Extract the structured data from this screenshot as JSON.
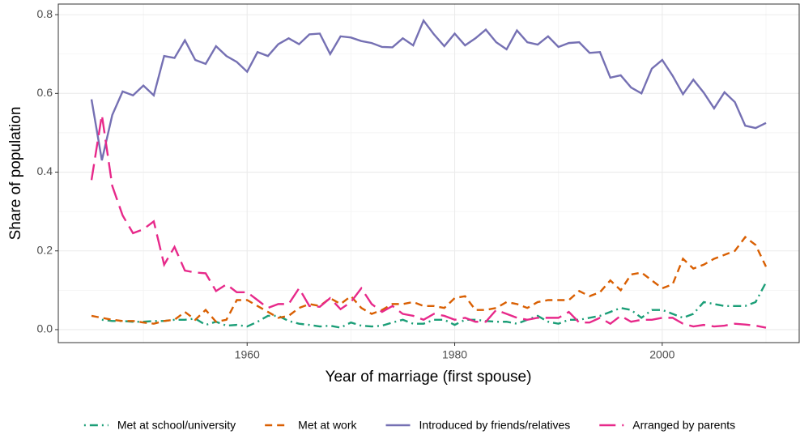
{
  "chart_data": {
    "type": "line",
    "x_label": "Year of marriage (first spouse)",
    "y_label": "Share of population",
    "x": [
      1945,
      1946,
      1947,
      1948,
      1949,
      1950,
      1951,
      1952,
      1953,
      1954,
      1955,
      1956,
      1957,
      1958,
      1959,
      1960,
      1961,
      1962,
      1963,
      1964,
      1965,
      1966,
      1967,
      1968,
      1969,
      1970,
      1971,
      1972,
      1973,
      1974,
      1975,
      1976,
      1977,
      1978,
      1979,
      1980,
      1981,
      1982,
      1983,
      1984,
      1985,
      1986,
      1987,
      1988,
      1989,
      1990,
      1991,
      1992,
      1993,
      1994,
      1995,
      1996,
      1997,
      1998,
      1999,
      2000,
      2001,
      2002,
      2003,
      2004,
      2005,
      2006,
      2007,
      2008,
      2009,
      2010
    ],
    "series": [
      {
        "name": "Met at school/university",
        "color": "#1b9e77",
        "linetype": "dotdash",
        "values": [
          null,
          0.025,
          0.022,
          0.022,
          0.02,
          0.02,
          0.022,
          0.022,
          0.025,
          0.025,
          0.028,
          0.012,
          0.02,
          0.01,
          0.012,
          0.008,
          0.02,
          0.035,
          0.035,
          0.022,
          0.015,
          0.012,
          0.008,
          0.01,
          0.005,
          0.018,
          0.01,
          0.008,
          0.01,
          0.018,
          0.025,
          0.015,
          0.015,
          0.025,
          0.025,
          0.012,
          0.025,
          0.025,
          0.022,
          0.02,
          0.02,
          0.015,
          0.025,
          0.035,
          0.02,
          0.015,
          0.025,
          0.025,
          0.03,
          0.035,
          0.045,
          0.055,
          0.05,
          0.03,
          0.05,
          0.05,
          0.04,
          0.03,
          0.04,
          0.07,
          0.065,
          0.06,
          0.06,
          0.06,
          0.07,
          0.12
        ]
      },
      {
        "name": "Met at work",
        "color": "#d95f02",
        "linetype": "dashed",
        "values": [
          0.035,
          0.03,
          0.025,
          0.022,
          0.022,
          0.018,
          0.015,
          0.022,
          0.025,
          0.045,
          0.025,
          0.05,
          0.02,
          0.025,
          0.075,
          0.075,
          0.06,
          0.045,
          0.03,
          0.035,
          0.055,
          0.065,
          0.06,
          0.08,
          0.065,
          0.085,
          0.055,
          0.04,
          0.05,
          0.065,
          0.065,
          0.07,
          0.06,
          0.06,
          0.055,
          0.08,
          0.085,
          0.05,
          0.05,
          0.055,
          0.07,
          0.065,
          0.055,
          0.07,
          0.075,
          0.075,
          0.075,
          0.098,
          0.085,
          0.095,
          0.125,
          0.1,
          0.14,
          0.145,
          0.125,
          0.105,
          0.115,
          0.18,
          0.155,
          0.165,
          0.18,
          0.19,
          0.2,
          0.235,
          0.215,
          0.16
        ]
      },
      {
        "name": "Introduced by friends/relatives",
        "color": "#7570b3",
        "linetype": "solid",
        "values": [
          0.585,
          0.43,
          0.545,
          0.605,
          0.595,
          0.62,
          0.595,
          0.695,
          0.69,
          0.735,
          0.685,
          0.675,
          0.72,
          0.695,
          0.68,
          0.655,
          0.705,
          0.695,
          0.725,
          0.74,
          0.725,
          0.75,
          0.752,
          0.7,
          0.745,
          0.742,
          0.733,
          0.728,
          0.718,
          0.717,
          0.74,
          0.722,
          0.785,
          0.75,
          0.72,
          0.752,
          0.722,
          0.74,
          0.762,
          0.73,
          0.712,
          0.76,
          0.73,
          0.724,
          0.745,
          0.718,
          0.728,
          0.73,
          0.703,
          0.705,
          0.64,
          0.646,
          0.615,
          0.6,
          0.663,
          0.685,
          0.645,
          0.598,
          0.635,
          0.602,
          0.562,
          0.603,
          0.578,
          0.518,
          0.512,
          0.525
        ]
      },
      {
        "name": "Arranged by parents",
        "color": "#e7298a",
        "linetype": "longdash",
        "values": [
          0.38,
          0.545,
          0.365,
          0.29,
          0.245,
          0.255,
          0.275,
          0.165,
          0.21,
          0.15,
          0.145,
          0.143,
          0.098,
          0.115,
          0.095,
          0.095,
          0.075,
          0.055,
          0.065,
          0.065,
          0.105,
          0.06,
          0.058,
          0.08,
          0.052,
          0.07,
          0.105,
          0.065,
          0.045,
          0.06,
          0.04,
          0.035,
          0.025,
          0.04,
          0.035,
          0.025,
          0.03,
          0.02,
          0.02,
          0.05,
          0.04,
          0.03,
          0.025,
          0.03,
          0.03,
          0.03,
          0.045,
          0.018,
          0.018,
          0.03,
          0.015,
          0.035,
          0.02,
          0.025,
          0.025,
          0.03,
          0.03,
          0.015,
          0.008,
          0.012,
          0.008,
          0.01,
          0.015,
          0.013,
          0.01,
          0.005
        ]
      }
    ],
    "xlim": [
      1941.8,
      2013.2
    ],
    "xticks": [
      1960,
      1980,
      2000
    ],
    "ylim": [
      -0.033,
      0.827
    ],
    "yticks": [
      {
        "value": 0,
        "label": "0.0"
      },
      0.2,
      0.4,
      0.6,
      0.8
    ],
    "grid": true,
    "legend": "bottom"
  }
}
